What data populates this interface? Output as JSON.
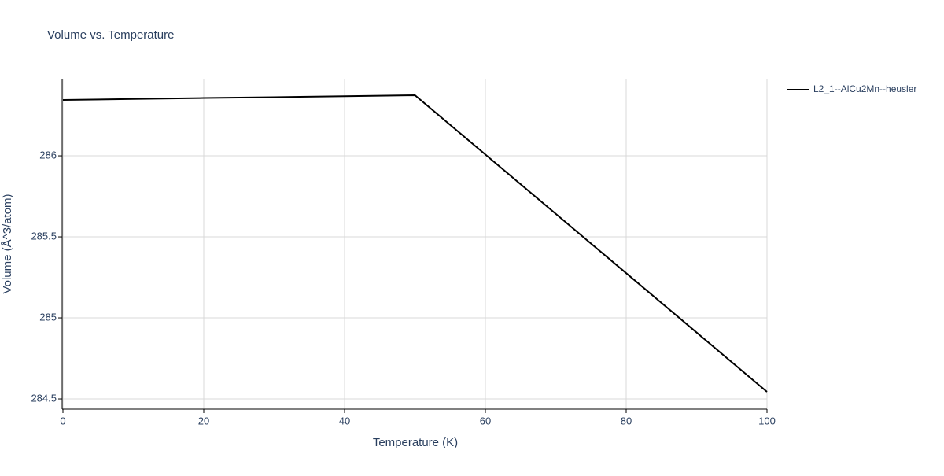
{
  "chart_data": {
    "type": "line",
    "title": "Volume vs. Temperature",
    "x_label": "Temperature (K)",
    "y_label": "Volume (Å^3/atom)",
    "x": [
      0,
      10,
      20,
      30,
      40,
      50,
      60,
      70,
      80,
      90,
      100
    ],
    "series": [
      {
        "name": "L2_1--AlCu2Mn--heusler",
        "color": "#000000",
        "values": [
          286.345,
          286.351,
          286.357,
          286.362,
          286.368,
          286.374,
          286.008,
          285.642,
          285.276,
          284.91,
          284.544
        ]
      }
    ],
    "xlim": [
      0,
      100
    ],
    "xticks": [
      0,
      20,
      40,
      60,
      80,
      100
    ],
    "ylim": [
      284.437,
      286.476
    ],
    "yticks": [
      284.5,
      285,
      285.5,
      286
    ],
    "grid": true,
    "legend": "top-right"
  }
}
